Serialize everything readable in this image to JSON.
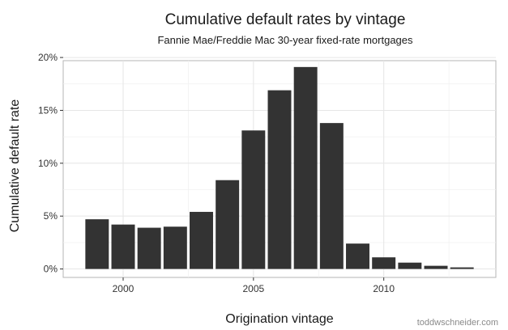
{
  "chart_data": {
    "type": "bar",
    "title": "Cumulative default rates by vintage",
    "subtitle": "Fannie Mae/Freddie Mac 30-year fixed-rate mortgages",
    "xlabel": "Origination vintage",
    "ylabel": "Cumulative default rate",
    "x": [
      1999,
      2000,
      2001,
      2002,
      2003,
      2004,
      2005,
      2006,
      2007,
      2008,
      2009,
      2010,
      2011,
      2012,
      2013
    ],
    "values": [
      0.047,
      0.042,
      0.039,
      0.04,
      0.054,
      0.084,
      0.131,
      0.169,
      0.191,
      0.138,
      0.024,
      0.011,
      0.006,
      0.003,
      0.0015
    ],
    "xlim": [
      1997.7,
      2014.3
    ],
    "ylim": [
      -0.008,
      0.197
    ],
    "x_ticks": [
      2000,
      2005,
      2010
    ],
    "x_tick_labels": [
      "2000",
      "2005",
      "2010"
    ],
    "y_ticks": [
      0,
      0.05,
      0.1,
      0.15,
      0.2
    ],
    "y_tick_labels": [
      "0%",
      "5%",
      "10%",
      "15%",
      "20%"
    ],
    "grid": true,
    "bar_color": "#333333",
    "panel_color": "#ffffff",
    "grid_color": "#e6e6e6"
  },
  "credit": "toddwschneider.com"
}
